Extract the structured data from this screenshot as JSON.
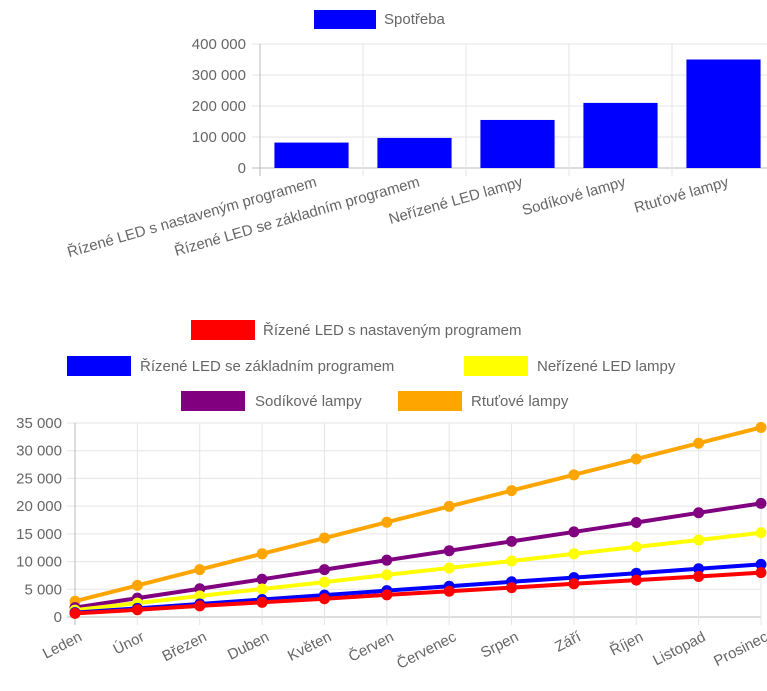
{
  "chart_data": [
    {
      "type": "bar",
      "categories": [
        "Řízené LED s nastaveným programem",
        "Řízené LED se základním programem",
        "Neřízené LED lampy",
        "Sodíkové lampy",
        "Rtuťové lampy"
      ],
      "series": [
        {
          "name": "Spotřeba",
          "values": [
            82000,
            97000,
            155000,
            210000,
            350000
          ],
          "color": "#0000ff"
        }
      ],
      "yticks": [
        "0",
        "100 000",
        "200 000",
        "300 000",
        "400 000"
      ],
      "ylim": [
        0,
        400000
      ],
      "grid": true,
      "legend": "top"
    },
    {
      "type": "line",
      "categories": [
        "Leden",
        "Únor",
        "Březen",
        "Duben",
        "Květen",
        "Červen",
        "Červenec",
        "Srpen",
        "Září",
        "Říjen",
        "Listopad",
        "Prosinec"
      ],
      "series": [
        {
          "name": "Řízené LED s nastaveným programem",
          "color": "#ff0000",
          "values": [
            650,
            1300,
            2000,
            2650,
            3300,
            4000,
            4650,
            5300,
            6000,
            6650,
            7300,
            8000
          ]
        },
        {
          "name": "Řízené LED se základním programem",
          "color": "#0000ff",
          "values": [
            800,
            1550,
            2350,
            3150,
            3950,
            4750,
            5550,
            6350,
            7100,
            7900,
            8700,
            9500
          ]
        },
        {
          "name": "Neřízené LED lampy",
          "color": "#ffff00",
          "values": [
            1250,
            2500,
            3800,
            5050,
            6300,
            7600,
            8850,
            10100,
            11400,
            12650,
            13900,
            15200
          ]
        },
        {
          "name": "Sodíkové lampy",
          "color": "#800080",
          "values": [
            1700,
            3400,
            5100,
            6800,
            8550,
            10250,
            11950,
            13650,
            15350,
            17050,
            18800,
            20500
          ]
        },
        {
          "name": "Rtuťové lampy",
          "color": "#ffa500",
          "values": [
            2850,
            5700,
            8550,
            11400,
            14250,
            17100,
            19950,
            22800,
            25650,
            28500,
            31350,
            34200
          ]
        }
      ],
      "yticks": [
        "0",
        "5 000",
        "10 000",
        "15 000",
        "20 000",
        "25 000",
        "30 000",
        "35 000"
      ],
      "ylim": [
        0,
        35000
      ],
      "grid": true,
      "legend": "top"
    }
  ]
}
